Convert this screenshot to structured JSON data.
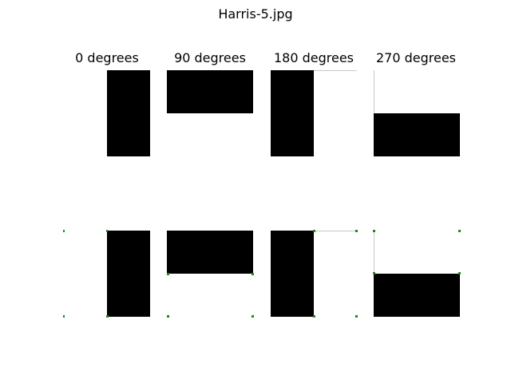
{
  "figure_title": "Harris-5.jpg",
  "columns": [
    {
      "title": "0 degrees",
      "rotation": 0
    },
    {
      "title": "90 degrees",
      "rotation": 90
    },
    {
      "title": "180 degrees",
      "rotation": 180
    },
    {
      "title": "270 degrees",
      "rotation": 270
    }
  ],
  "rows": [
    {
      "role": "rotated-image",
      "corner_markers": false
    },
    {
      "role": "harris-corners",
      "corner_markers": true
    }
  ],
  "colors": {
    "background": "#ffffff",
    "shape": "#000000",
    "edge_line": "#c8c8c8",
    "corner_marker": "#1a8a1a"
  }
}
